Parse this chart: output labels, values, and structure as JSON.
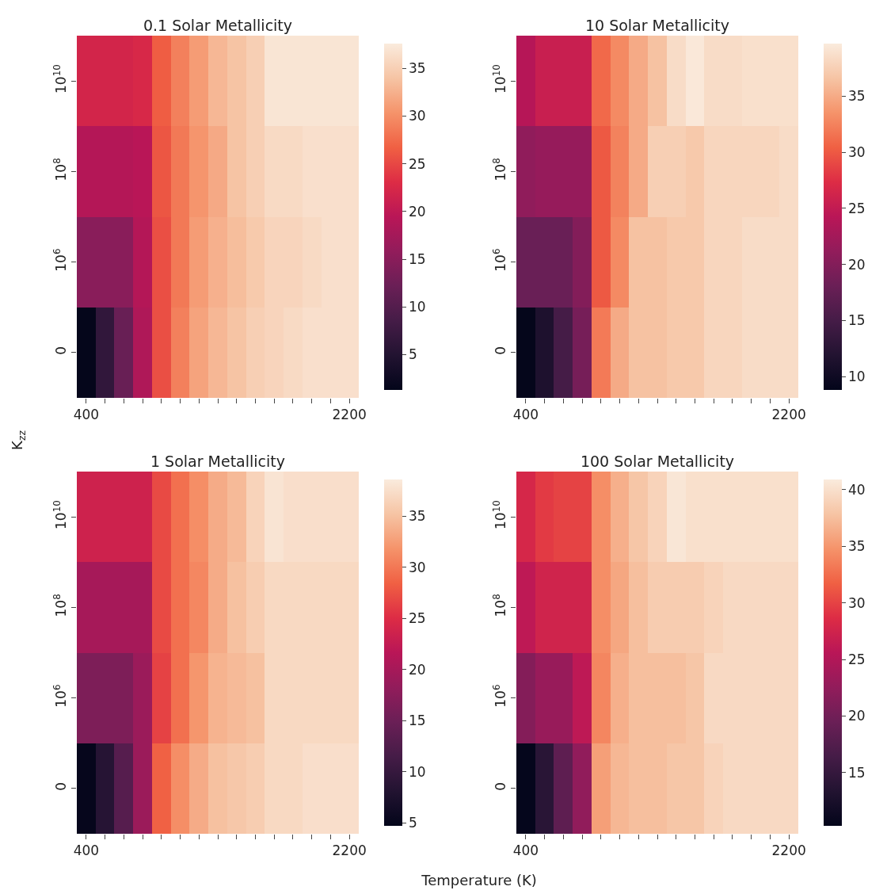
{
  "chart_data": [
    {
      "type": "heatmap",
      "title": "0.1 Solar Metallicity",
      "ylabel": "K$_{zz}$",
      "categories": [
        "400",
        null,
        null,
        null,
        null,
        null,
        null,
        null,
        null,
        null,
        null,
        null,
        null,
        null,
        "2200"
      ],
      "y_categories": [
        "10$^{10}$",
        "10$^{8}$",
        "10$^{6}$",
        "0"
      ],
      "cells": [
        [
          22,
          22,
          22,
          22.5,
          26.5,
          29,
          31,
          33,
          34,
          35,
          37,
          37,
          37,
          37,
          37
        ],
        [
          19,
          19,
          19,
          19.5,
          26,
          28.5,
          30.5,
          32,
          34,
          35,
          36,
          36,
          36.5,
          36.5,
          36.5
        ],
        [
          15,
          15,
          15,
          19,
          25.5,
          28.5,
          31,
          32.5,
          33.5,
          34.5,
          35.5,
          35.5,
          36,
          36.5,
          36.5
        ],
        [
          1.5,
          6.5,
          12,
          18.5,
          25.5,
          29,
          31.5,
          33,
          34,
          35,
          35.5,
          36,
          36.5,
          36.5,
          36.5
        ]
      ],
      "clim": [
        1.3,
        37.6
      ],
      "cticks": [
        5,
        10,
        15,
        20,
        25,
        30,
        35
      ]
    },
    {
      "type": "heatmap",
      "title": "10 Solar Metallicity",
      "categories": [
        "400",
        null,
        null,
        null,
        null,
        null,
        null,
        null,
        null,
        null,
        null,
        null,
        null,
        null,
        "2200"
      ],
      "y_categories": [
        "10$^{10}$",
        "10$^{8}$",
        "10$^{6}$",
        "0"
      ],
      "cells": [
        [
          24,
          25.5,
          25.5,
          25.5,
          31,
          33,
          35,
          36.5,
          38.5,
          39.5,
          38.5,
          38.5,
          38.8,
          38.8,
          38.8
        ],
        [
          21,
          21.5,
          21.5,
          21.5,
          30,
          32.5,
          35,
          37.5,
          37.5,
          37,
          38,
          38,
          38,
          38,
          38.5
        ],
        [
          18,
          18,
          18,
          20,
          30,
          33,
          36.5,
          36.5,
          37,
          37,
          38,
          38,
          38.5,
          38.5,
          38.5
        ],
        [
          9,
          11.5,
          15,
          19,
          32,
          35,
          36.5,
          36.5,
          37,
          37,
          38,
          38,
          38.5,
          38.5,
          38.5
        ]
      ],
      "clim": [
        8.8,
        39.7
      ],
      "cticks": [
        10,
        15,
        20,
        25,
        30,
        35
      ]
    },
    {
      "type": "heatmap",
      "title": "1 Solar Metallicity",
      "xlabel": "Temperature (K)",
      "categories": [
        "400",
        null,
        null,
        null,
        null,
        null,
        null,
        null,
        null,
        null,
        null,
        null,
        null,
        null,
        "2200"
      ],
      "y_categories": [
        "10$^{10}$",
        "10$^{8}$",
        "10$^{6}$",
        "0"
      ],
      "cells": [
        [
          23.5,
          23.5,
          23.5,
          23.5,
          27,
          29.5,
          31.5,
          33.5,
          34.5,
          36.5,
          38,
          37.5,
          37.5,
          37.5,
          37.5
        ],
        [
          20,
          20,
          20,
          20,
          27,
          29.5,
          31,
          33.5,
          35,
          36,
          37,
          37,
          37,
          37,
          37
        ],
        [
          16.5,
          16.5,
          16.5,
          19,
          26.5,
          29.5,
          32,
          34,
          34.5,
          35,
          37,
          37,
          37,
          37,
          37
        ],
        [
          5,
          8.5,
          13,
          19,
          28.5,
          31.5,
          33.5,
          35,
          35.5,
          36,
          37,
          37,
          37.5,
          37.5,
          37.5
        ]
      ],
      "clim": [
        4.7,
        38.6
      ],
      "cticks": [
        5,
        10,
        15,
        20,
        25,
        30,
        35
      ]
    },
    {
      "type": "heatmap",
      "title": "100 Solar Metallicity",
      "categories": [
        "400",
        null,
        null,
        null,
        null,
        null,
        null,
        null,
        null,
        null,
        null,
        null,
        null,
        null,
        "2200"
      ],
      "y_categories": [
        "10$^{10}$",
        "10$^{8}$",
        "10$^{6}$",
        "0"
      ],
      "cells": [
        [
          28,
          29.5,
          30,
          30,
          34.5,
          36.5,
          38,
          39,
          40.5,
          40,
          40,
          40,
          40,
          40,
          40
        ],
        [
          26,
          27.5,
          27.5,
          27.5,
          34.5,
          36,
          37.5,
          38.5,
          38.5,
          38.5,
          39,
          39.5,
          39.5,
          39.5,
          39.5
        ],
        [
          21.5,
          23,
          23,
          26,
          34,
          36.5,
          37.5,
          37.5,
          37.5,
          38,
          39.5,
          39.5,
          39.5,
          39.5,
          39.5
        ],
        [
          10.5,
          14,
          18.5,
          22.5,
          35.5,
          37,
          37.5,
          37.5,
          38,
          38,
          39,
          39.5,
          39.5,
          39.5,
          39.5
        ]
      ],
      "clim": [
        10.3,
        40.9
      ],
      "cticks": [
        15,
        20,
        25,
        30,
        35,
        40
      ]
    }
  ]
}
